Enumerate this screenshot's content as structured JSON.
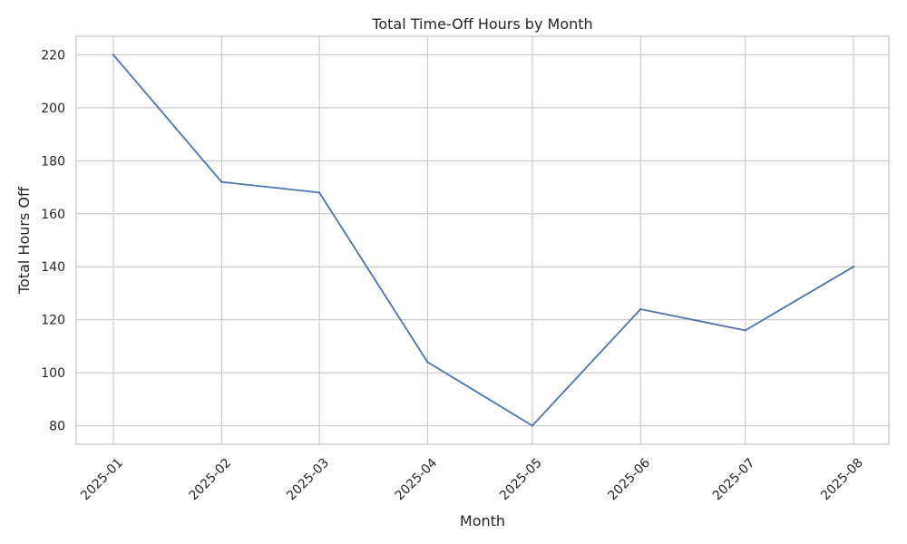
{
  "chart_data": {
    "type": "line",
    "title": "Total Time-Off Hours by Month",
    "xlabel": "Month",
    "ylabel": "Total Hours Off",
    "categories": [
      "2025-01",
      "2025-02",
      "2025-03",
      "2025-04",
      "2025-05",
      "2025-06",
      "2025-07",
      "2025-08"
    ],
    "x_dates": [
      "2025-01-01",
      "2025-02-01",
      "2025-03-01",
      "2025-04-01",
      "2025-05-01",
      "2025-06-01",
      "2025-07-01",
      "2025-08-01"
    ],
    "series": [
      {
        "values": [
          220,
          172,
          168,
          104,
          80,
          124,
          116,
          140
        ],
        "color": "#4c72b0"
      }
    ],
    "yticks": [
      80,
      100,
      120,
      140,
      160,
      180,
      200,
      220
    ],
    "ylim": [
      73,
      227
    ],
    "grid": true,
    "legend": "none"
  }
}
